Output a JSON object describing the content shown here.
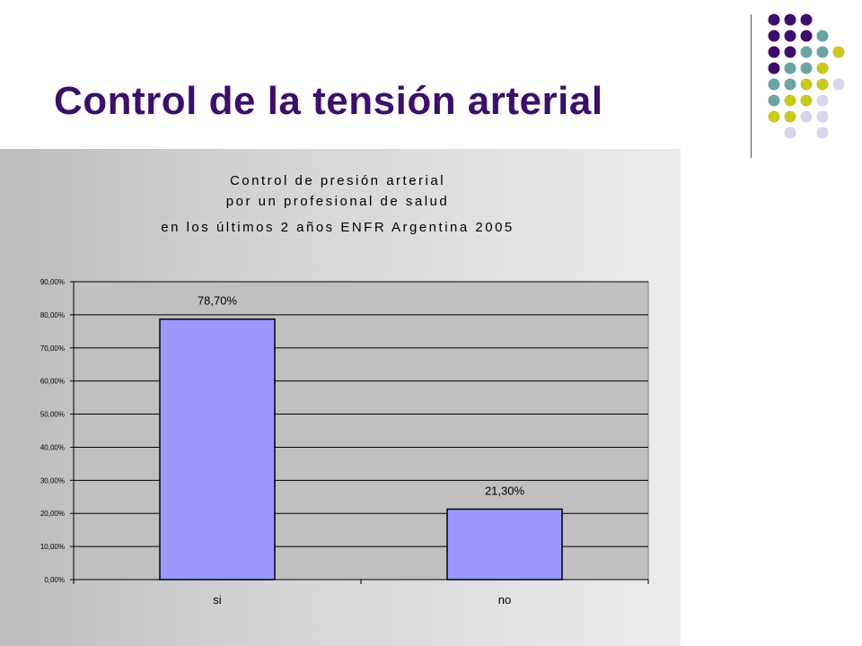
{
  "slide": {
    "title": "Control de la tensión arterial"
  },
  "decoration": {
    "dot_colors": {
      "purple": "#3b0f6b",
      "teal": "#6fa3a3",
      "yellow": "#c8c81e",
      "lavender": "#d6d6ea"
    }
  },
  "colors": {
    "bar": "#9999ff",
    "plot_bg": "#c0c0c0",
    "title": "#3b0f6b"
  },
  "chart_data": {
    "type": "bar",
    "title_lines": [
      "Control de presión arterial",
      "por un profesional de salud",
      "en los últimos 2 años  ENFR Argentina 2005"
    ],
    "categories": [
      "si",
      "no"
    ],
    "values": [
      78.7,
      21.3
    ],
    "data_labels": [
      "78,70%",
      "21,30%"
    ],
    "y_ticks": [
      "0,00%",
      "10,00%",
      "20,00%",
      "30,00%",
      "40,00%",
      "50,00%",
      "60,00%",
      "70,00%",
      "80,00%",
      "90,00%"
    ],
    "ylim": [
      0,
      90
    ],
    "grid": true,
    "legend": "none"
  }
}
